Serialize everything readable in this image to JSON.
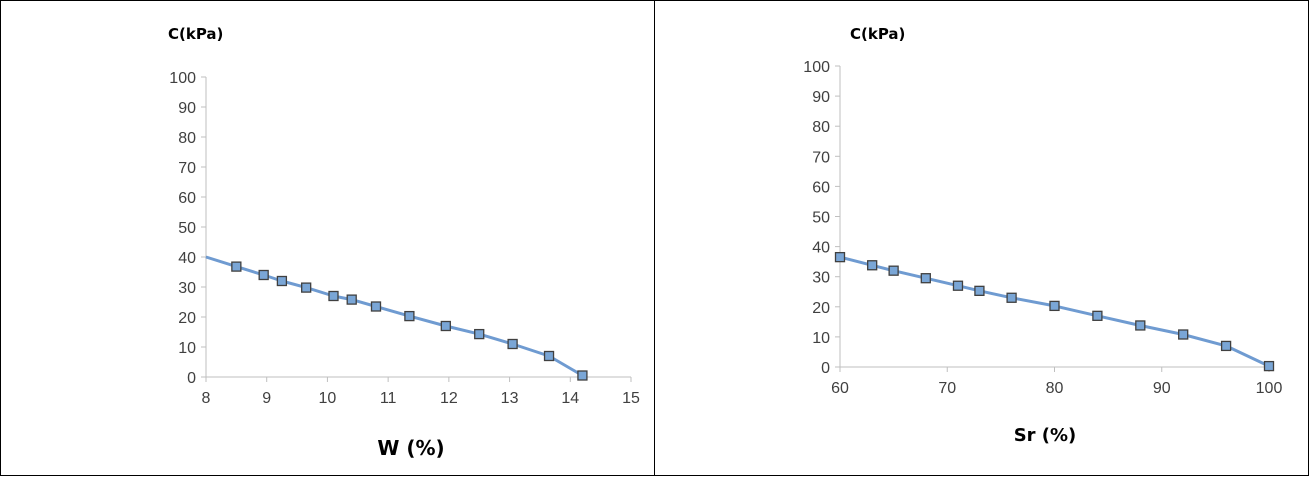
{
  "chart_data": [
    {
      "type": "line",
      "ylabel": "C(kPa)",
      "xlabel": "W (%)",
      "xlim": [
        8,
        15
      ],
      "ylim": [
        0,
        100
      ],
      "xticks": [
        "8",
        "9",
        "10",
        "11",
        "12",
        "13",
        "14",
        "15"
      ],
      "yticks": [
        "0",
        "10",
        "20",
        "30",
        "40",
        "50",
        "60",
        "70",
        "80",
        "90",
        "100"
      ],
      "series": [
        {
          "x": [
            8.0,
            8.5,
            8.95,
            9.25,
            9.65,
            10.1,
            10.4,
            10.8,
            11.35,
            11.95,
            12.5,
            13.05,
            13.65,
            14.2
          ],
          "y": [
            40.0,
            36.8,
            34.0,
            32.0,
            29.8,
            27.0,
            25.8,
            23.5,
            20.3,
            17.0,
            14.3,
            11.0,
            7.0,
            0.5
          ],
          "markers": [
            false,
            true,
            true,
            true,
            true,
            true,
            true,
            true,
            true,
            true,
            true,
            true,
            true,
            true
          ]
        }
      ],
      "grid": false
    },
    {
      "type": "line",
      "ylabel": "C(kPa)",
      "xlabel": "Sr (%)",
      "xlim": [
        60,
        100
      ],
      "ylim": [
        0,
        100
      ],
      "xticks": [
        "60",
        "70",
        "80",
        "90",
        "100"
      ],
      "yticks": [
        "0",
        "10",
        "20",
        "30",
        "40",
        "50",
        "60",
        "70",
        "80",
        "90",
        "100"
      ],
      "series": [
        {
          "x": [
            60,
            63,
            65,
            68,
            71,
            73,
            76,
            80,
            84,
            88,
            92,
            96,
            100
          ],
          "y": [
            36.5,
            33.8,
            32.0,
            29.5,
            27.0,
            25.3,
            23.0,
            20.3,
            17.0,
            13.8,
            10.8,
            7.0,
            0.3
          ],
          "markers": [
            true,
            true,
            true,
            true,
            true,
            true,
            true,
            true,
            true,
            true,
            true,
            true,
            true
          ]
        }
      ],
      "grid": false
    }
  ],
  "colors": {
    "line": "#6f9bd1",
    "line_dark": "#2f4f6f",
    "marker_fill": "#7aa6d6",
    "marker_stroke": "#404040",
    "axis": "#bfbfbf"
  }
}
